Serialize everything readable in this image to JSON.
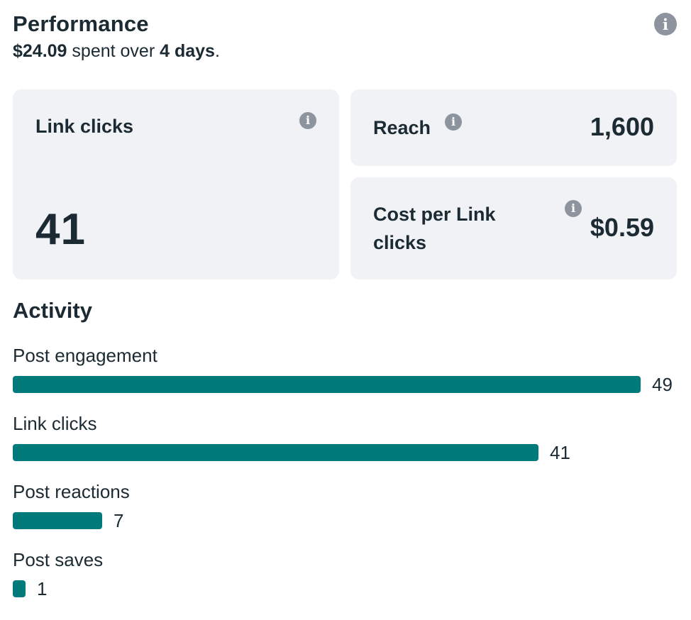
{
  "header": {
    "title": "Performance",
    "spent_amount": "$24.09",
    "spent_text": "spent over",
    "duration": "4 days",
    "period_end": "."
  },
  "cards": {
    "link_clicks": {
      "label": "Link clicks",
      "value": "41"
    },
    "reach": {
      "label": "Reach",
      "value": "1,600"
    },
    "cost_per_link_click": {
      "label": "Cost per Link clicks",
      "value": "$0.59"
    }
  },
  "activity": {
    "title": "Activity",
    "max": 49,
    "rows": [
      {
        "label": "Post engagement",
        "value": 49
      },
      {
        "label": "Link clicks",
        "value": 41
      },
      {
        "label": "Post reactions",
        "value": 7
      },
      {
        "label": "Post saves",
        "value": 1
      }
    ]
  },
  "colors": {
    "bar": "#007a7a",
    "card_bg": "#f0f2f5",
    "info_icon": "#8d949e",
    "text": "#1c2b33"
  },
  "icons": {
    "info": "info-circle-icon"
  }
}
